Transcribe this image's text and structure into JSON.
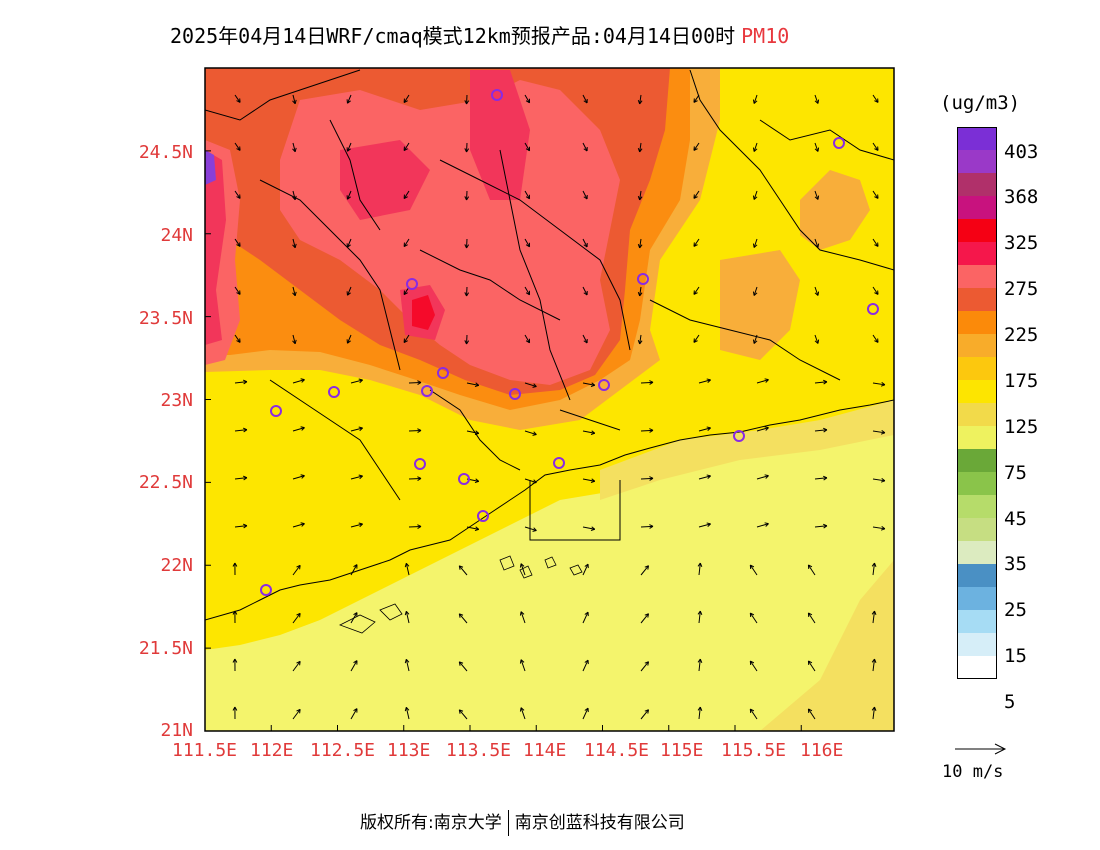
{
  "title": {
    "main": "2025年04月14日WRF/cmaq模式12km预报产品:04月14日00时",
    "pollutant": "PM10"
  },
  "axes": {
    "lat_labels": [
      "24.5N",
      "24N",
      "23.5N",
      "23N",
      "22.5N",
      "22N",
      "21.5N",
      "21N"
    ],
    "lat_values": [
      24.5,
      24,
      23.5,
      23,
      22.5,
      22,
      21.5,
      21
    ],
    "lon_labels": [
      "111.5E",
      "112E",
      "112.5E",
      "113E",
      "113.5E",
      "114E",
      "114.5E",
      "115E",
      "115.5E",
      "116E"
    ],
    "lon_values": [
      111.5,
      112,
      112.5,
      113,
      113.5,
      114,
      114.5,
      115,
      115.5,
      116
    ],
    "lon_range": [
      111.5,
      116.7
    ],
    "lat_range": [
      21,
      25.0
    ]
  },
  "legend": {
    "units": "(ug/m3)",
    "labels": [
      "403",
      "368",
      "325",
      "275",
      "225",
      "175",
      "125",
      "75",
      "45",
      "35",
      "25",
      "15",
      "5"
    ],
    "colors": [
      "#7b2fd6",
      "#9a39c8",
      "#b0306a",
      "#c8127e",
      "#f50014",
      "#f5174b",
      "#fb6464",
      "#ec5a32",
      "#fb8a0a",
      "#f8ac2a",
      "#fcc80e",
      "#fde500",
      "#f2da4a",
      "#eef25f",
      "#6aa838",
      "#8ac44a",
      "#b6dc6a",
      "#c6de82",
      "#dcebc0",
      "#4a90c4",
      "#6cb2e0",
      "#a6dcf4",
      "#d6eef8",
      "#ffffff"
    ]
  },
  "wind_key": {
    "label": "10 m/s"
  },
  "footer": {
    "left": "版权所有:南京大学",
    "right": "南京创蓝科技有限公司"
  },
  "map_colors": {
    "base": "#f4f46c",
    "yellow_light": "#f4e060",
    "yellow": "#fde600",
    "orange_light": "#f8ae3a",
    "orange": "#fb8d10",
    "red_orange": "#ec5a32",
    "salmon": "#fb6464",
    "pink_red": "#f2365a",
    "red": "#f50a2a",
    "purple": "#8a3fd8",
    "border": "#000000",
    "station": "#8a2be2"
  }
}
